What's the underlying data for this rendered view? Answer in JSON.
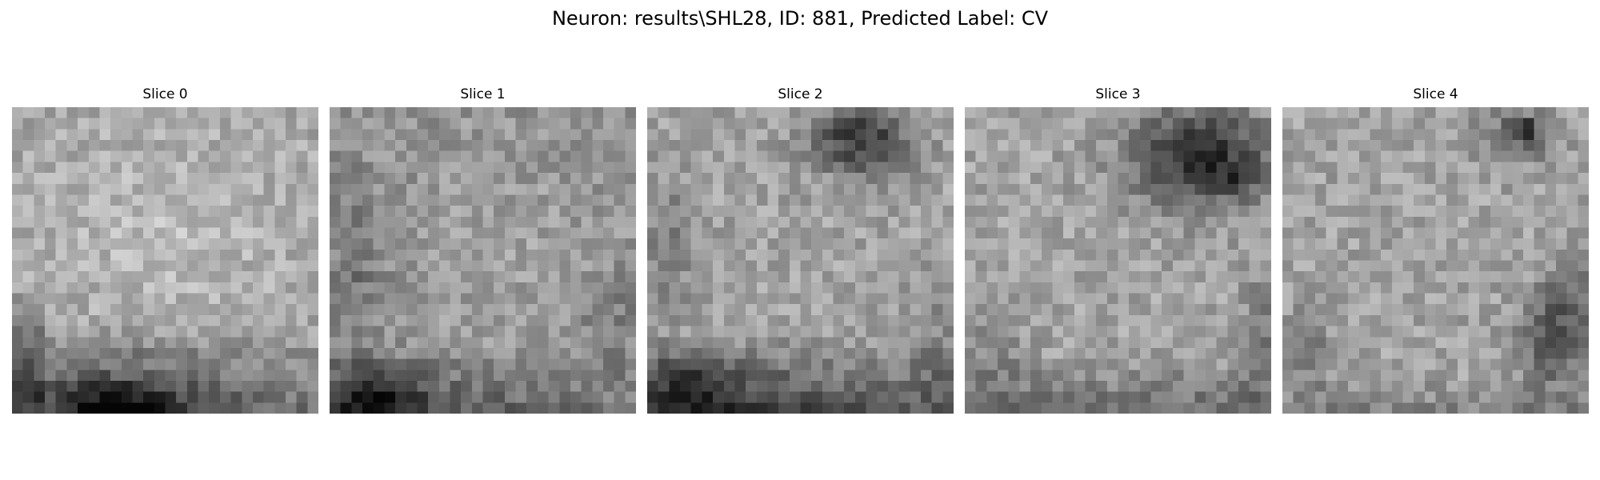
{
  "figure": {
    "title": "Neuron: results\\SHL28, ID: 881, Predicted Label: CV"
  },
  "slices": [
    {
      "title": "Slice 0",
      "image": "noisy grayscale intensity patch, bright upper area, dark band along the bottom"
    },
    {
      "title": "Slice 1",
      "image": "noisy grayscale intensity patch, mid-gray speckle, dark lower-left corner"
    },
    {
      "title": "Slice 2",
      "image": "noisy grayscale intensity patch, dark blob top-right, dark band along the bottom"
    },
    {
      "title": "Slice 3",
      "image": "noisy grayscale intensity patch, large dark blob top-right"
    },
    {
      "title": "Slice 4",
      "image": "noisy grayscale intensity patch, small dark spot top-right, dark patches on right edge"
    }
  ],
  "colormap": "gray"
}
